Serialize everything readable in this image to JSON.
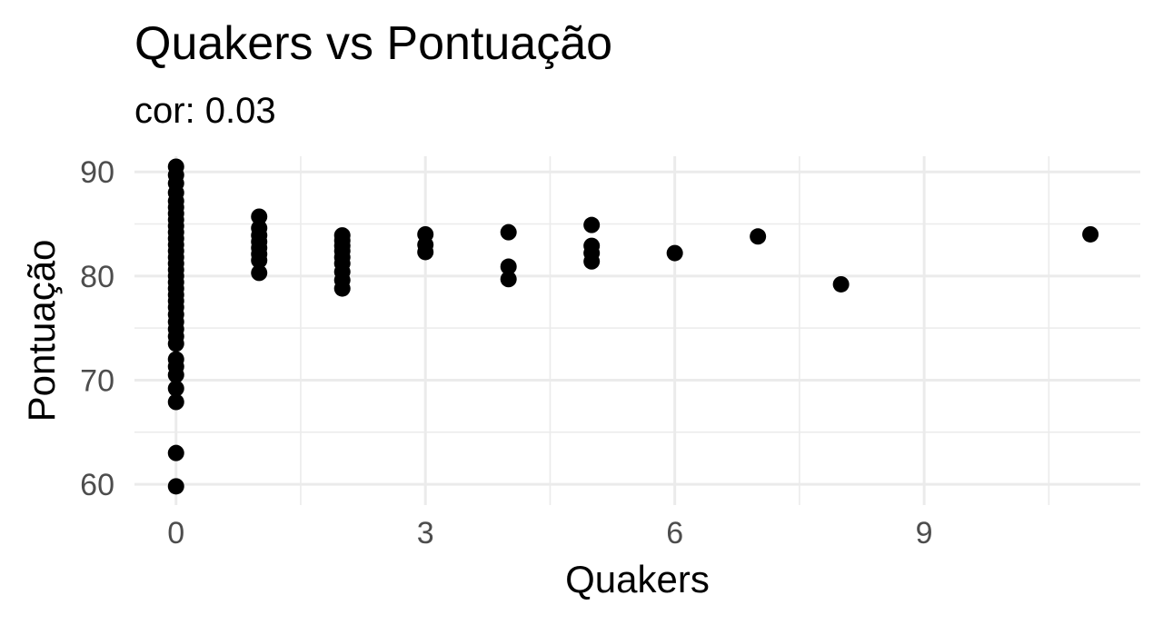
{
  "chart_data": {
    "type": "scatter",
    "title": "Quakers vs Pontuação",
    "subtitle": "cor: 0.03",
    "xlabel": "Quakers",
    "ylabel": "Pontuação",
    "xlim": [
      -0.5,
      11.6
    ],
    "ylim": [
      58,
      91.5
    ],
    "x_ticks": [
      0,
      3,
      6,
      9
    ],
    "x_tick_labels": [
      "0",
      "3",
      "6",
      "9"
    ],
    "y_ticks": [
      60,
      70,
      80,
      90
    ],
    "y_tick_labels": [
      "60",
      "70",
      "80",
      "90"
    ],
    "grid": true,
    "legend": "none",
    "point_color": "#000000",
    "points": [
      {
        "x": 0,
        "y": 59.8
      },
      {
        "x": 0,
        "y": 63.0
      },
      {
        "x": 0,
        "y": 67.9
      },
      {
        "x": 0,
        "y": 69.2
      },
      {
        "x": 0,
        "y": 70.5
      },
      {
        "x": 0,
        "y": 71.3
      },
      {
        "x": 0,
        "y": 72.0
      },
      {
        "x": 0,
        "y": 73.5
      },
      {
        "x": 0,
        "y": 74.2
      },
      {
        "x": 0,
        "y": 74.9
      },
      {
        "x": 0,
        "y": 75.6
      },
      {
        "x": 0,
        "y": 76.3
      },
      {
        "x": 0,
        "y": 77.0
      },
      {
        "x": 0,
        "y": 77.6
      },
      {
        "x": 0,
        "y": 78.2
      },
      {
        "x": 0,
        "y": 78.8
      },
      {
        "x": 0,
        "y": 79.4
      },
      {
        "x": 0,
        "y": 80.0
      },
      {
        "x": 0,
        "y": 80.6
      },
      {
        "x": 0,
        "y": 81.2
      },
      {
        "x": 0,
        "y": 81.8
      },
      {
        "x": 0,
        "y": 82.4
      },
      {
        "x": 0,
        "y": 83.0
      },
      {
        "x": 0,
        "y": 83.6
      },
      {
        "x": 0,
        "y": 84.2
      },
      {
        "x": 0,
        "y": 84.8
      },
      {
        "x": 0,
        "y": 85.4
      },
      {
        "x": 0,
        "y": 86.0
      },
      {
        "x": 0,
        "y": 86.6
      },
      {
        "x": 0,
        "y": 87.2
      },
      {
        "x": 0,
        "y": 88.0
      },
      {
        "x": 0,
        "y": 88.9
      },
      {
        "x": 0,
        "y": 89.7
      },
      {
        "x": 0,
        "y": 90.5
      },
      {
        "x": 1,
        "y": 80.3
      },
      {
        "x": 1,
        "y": 81.5
      },
      {
        "x": 1,
        "y": 82.1
      },
      {
        "x": 1,
        "y": 82.7
      },
      {
        "x": 1,
        "y": 83.3
      },
      {
        "x": 1,
        "y": 83.9
      },
      {
        "x": 1,
        "y": 84.6
      },
      {
        "x": 1,
        "y": 85.7
      },
      {
        "x": 2,
        "y": 78.8
      },
      {
        "x": 2,
        "y": 79.6
      },
      {
        "x": 2,
        "y": 80.4
      },
      {
        "x": 2,
        "y": 81.2
      },
      {
        "x": 2,
        "y": 81.8
      },
      {
        "x": 2,
        "y": 82.4
      },
      {
        "x": 2,
        "y": 82.9
      },
      {
        "x": 2,
        "y": 83.4
      },
      {
        "x": 2,
        "y": 83.9
      },
      {
        "x": 3,
        "y": 82.3
      },
      {
        "x": 3,
        "y": 83.0
      },
      {
        "x": 3,
        "y": 84.0
      },
      {
        "x": 4,
        "y": 79.7
      },
      {
        "x": 4,
        "y": 80.9
      },
      {
        "x": 4,
        "y": 84.2
      },
      {
        "x": 5,
        "y": 81.4
      },
      {
        "x": 5,
        "y": 82.2
      },
      {
        "x": 5,
        "y": 82.9
      },
      {
        "x": 5,
        "y": 84.9
      },
      {
        "x": 6,
        "y": 82.2
      },
      {
        "x": 7,
        "y": 83.8
      },
      {
        "x": 8,
        "y": 79.2
      },
      {
        "x": 11,
        "y": 84.0
      }
    ]
  }
}
